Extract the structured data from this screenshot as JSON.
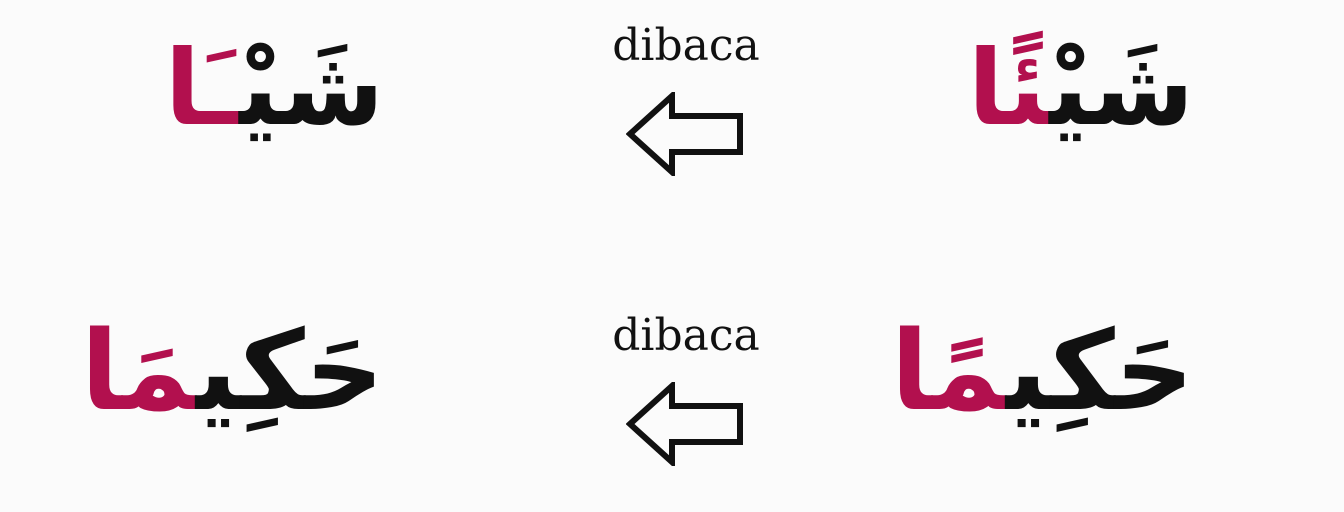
{
  "rows": [
    {
      "source_word": {
        "base": "شَيْ",
        "highlight": "ئًا"
      },
      "caption": "dibaca",
      "arrow_icon": "left-arrow-outline-icon",
      "result_word": {
        "base": "شَيْ",
        "highlight": "ـَا"
      }
    },
    {
      "source_word": {
        "base": "حَكِي",
        "highlight": "مًا"
      },
      "caption": "dibaca",
      "arrow_icon": "left-arrow-outline-icon",
      "result_word": {
        "base": "حَكِي",
        "highlight": "مَا"
      }
    }
  ],
  "colors": {
    "text": "#111111",
    "highlight": "#b2104e",
    "background": "#fbfbfb"
  }
}
